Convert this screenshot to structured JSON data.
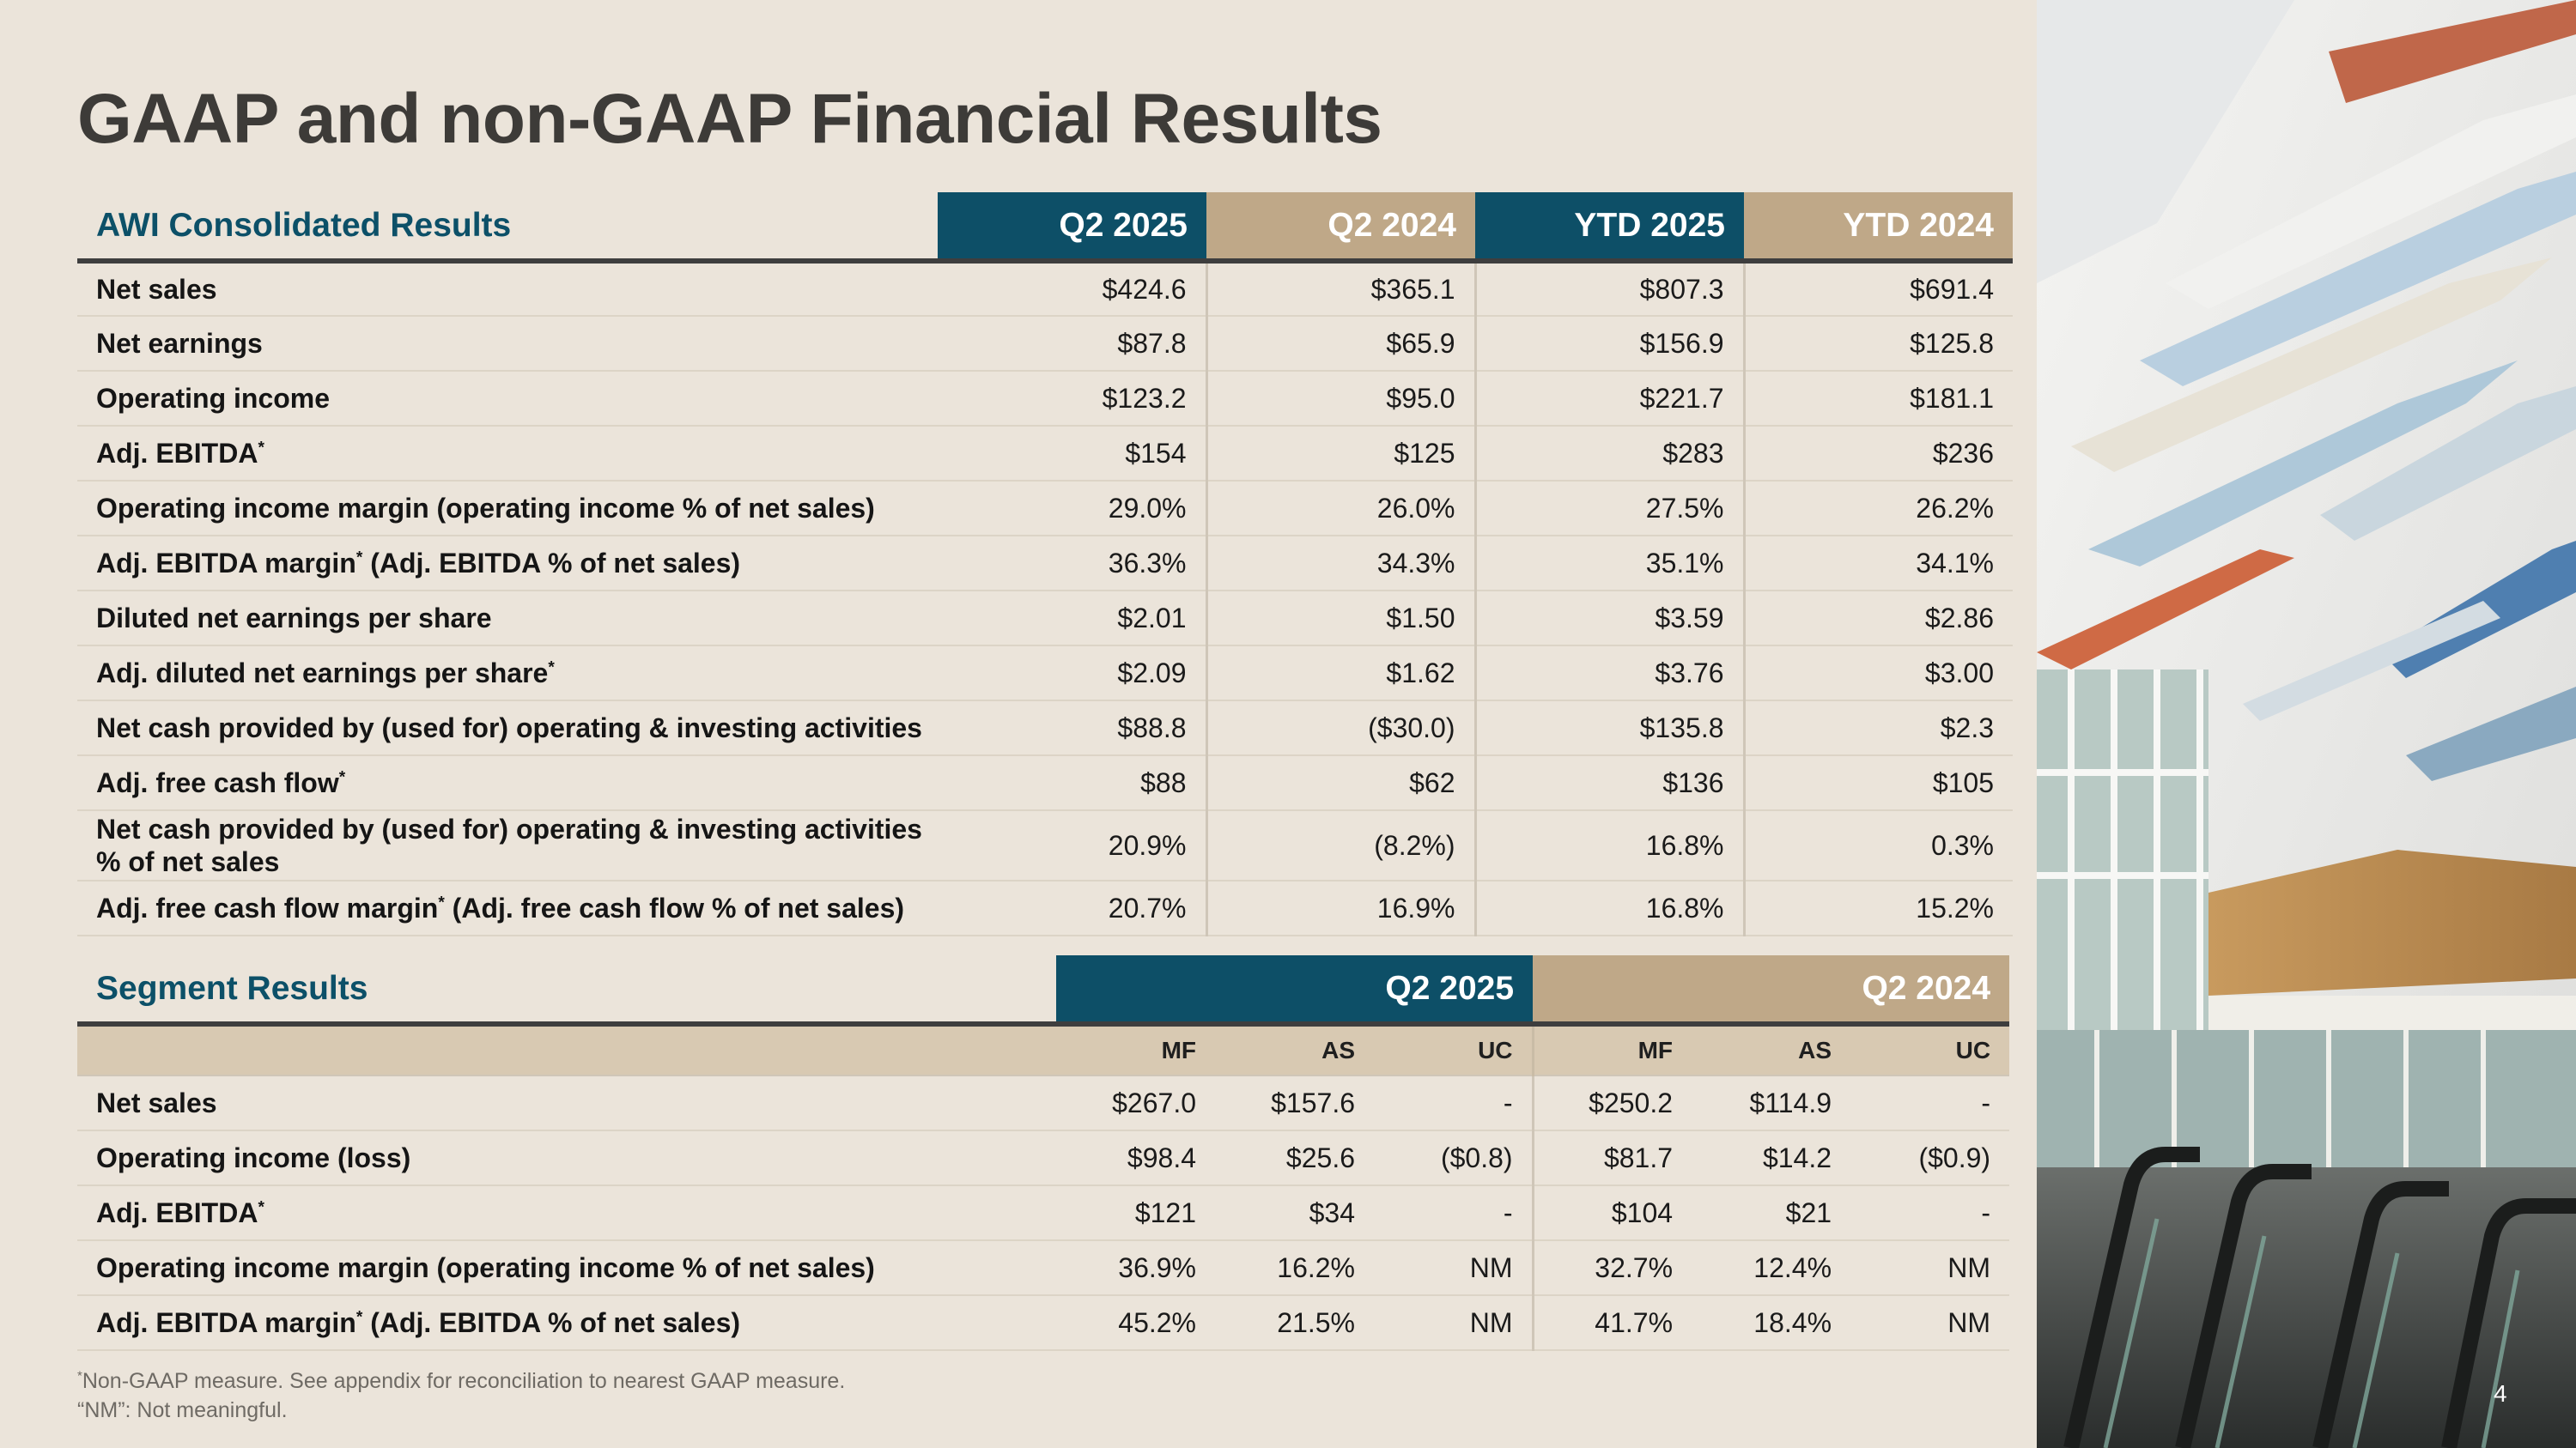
{
  "title": "GAAP and non-GAAP Financial Results",
  "consolidated": {
    "heading": "AWI Consolidated Results",
    "columns": [
      "Q2 2025",
      "Q2 2024",
      "YTD 2025",
      "YTD 2024"
    ],
    "rows": [
      {
        "label": "Net sales",
        "note": "",
        "suffix": "",
        "values": [
          "$424.6",
          "$365.1",
          "$807.3",
          "$691.4"
        ]
      },
      {
        "label": "Net earnings",
        "note": "",
        "suffix": "",
        "values": [
          "$87.8",
          "$65.9",
          "$156.9",
          "$125.8"
        ]
      },
      {
        "label": "Operating income",
        "note": "",
        "suffix": "",
        "values": [
          "$123.2",
          "$95.0",
          "$221.7",
          "$181.1"
        ]
      },
      {
        "label": "Adj. EBITDA",
        "note": "*",
        "suffix": "",
        "values": [
          "$154",
          "$125",
          "$283",
          "$236"
        ]
      },
      {
        "label": "Operating income margin (operating income % of net sales)",
        "note": "",
        "suffix": "",
        "values": [
          "29.0%",
          "26.0%",
          "27.5%",
          "26.2%"
        ]
      },
      {
        "label": "Adj. EBITDA margin",
        "note": "*",
        "suffix": " (Adj. EBITDA % of net sales)",
        "values": [
          "36.3%",
          "34.3%",
          "35.1%",
          "34.1%"
        ]
      },
      {
        "label": "Diluted net earnings per share",
        "note": "",
        "suffix": "",
        "values": [
          "$2.01",
          "$1.50",
          "$3.59",
          "$2.86"
        ]
      },
      {
        "label": "Adj. diluted net earnings per share",
        "note": "*",
        "suffix": "",
        "values": [
          "$2.09",
          "$1.62",
          "$3.76",
          "$3.00"
        ]
      },
      {
        "label": "Net cash provided by (used for) operating & investing activities",
        "note": "",
        "suffix": "",
        "values": [
          "$88.8",
          "($30.0)",
          "$135.8",
          "$2.3"
        ]
      },
      {
        "label": "Adj. free cash flow",
        "note": "*",
        "suffix": "",
        "values": [
          "$88",
          "$62",
          "$136",
          "$105"
        ]
      },
      {
        "label": "Net cash provided by (used for) operating & investing activities",
        "label2": "% of net sales",
        "note": "",
        "suffix": "",
        "values": [
          "20.9%",
          "(8.2%)",
          "16.8%",
          "0.3%"
        ]
      },
      {
        "label": "Adj. free cash flow margin",
        "note": "*",
        "suffix": " (Adj. free cash flow % of net sales)",
        "values": [
          "20.7%",
          "16.9%",
          "16.8%",
          "15.2%"
        ]
      }
    ]
  },
  "segment": {
    "heading": "Segment Results",
    "periods": [
      "Q2 2025",
      "Q2 2024"
    ],
    "subcolumns": [
      "MF",
      "AS",
      "UC",
      "MF",
      "AS",
      "UC"
    ],
    "rows": [
      {
        "label": "Net sales",
        "note": "",
        "suffix": "",
        "values": [
          "$267.0",
          "$157.6",
          "-",
          "$250.2",
          "$114.9",
          "-"
        ]
      },
      {
        "label": "Operating income (loss)",
        "note": "",
        "suffix": "",
        "values": [
          "$98.4",
          "$25.6",
          "($0.8)",
          "$81.7",
          "$14.2",
          "($0.9)"
        ]
      },
      {
        "label": "Adj. EBITDA",
        "note": "*",
        "suffix": "",
        "values": [
          "$121",
          "$34",
          "-",
          "$104",
          "$21",
          "-"
        ]
      },
      {
        "label": "Operating income margin (operating income % of net sales)",
        "note": "",
        "suffix": "",
        "values": [
          "36.9%",
          "16.2%",
          "NM",
          "32.7%",
          "12.4%",
          "NM"
        ]
      },
      {
        "label": "Adj. EBITDA margin",
        "note": "*",
        "suffix": " (Adj. EBITDA % of net sales)",
        "values": [
          "45.2%",
          "21.5%",
          "NM",
          "41.7%",
          "18.4%",
          "NM"
        ]
      }
    ]
  },
  "footnotes": {
    "line1_mark": "*",
    "line1": "Non-GAAP measure. See appendix for reconciliation to nearest GAAP measure.",
    "line2": "“NM”: Not meaningful."
  },
  "page_number": "4",
  "colors": {
    "navy": "#0d4f67",
    "tan": "#bfa888",
    "background": "#ebe4da"
  }
}
